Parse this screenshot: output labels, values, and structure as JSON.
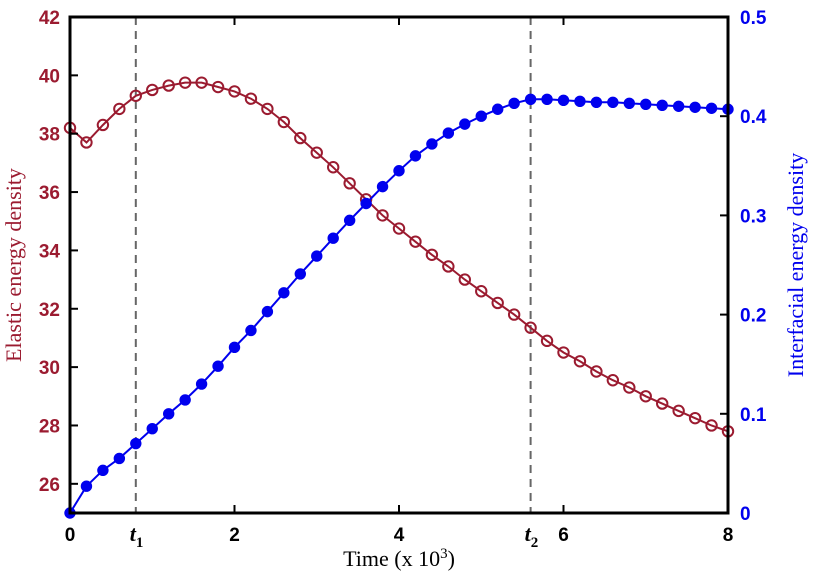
{
  "colors": {
    "elastic": "#9b1b30",
    "interfacial": "#0000ee",
    "axes": "#000000",
    "guide": "#666666"
  },
  "chart_data": {
    "type": "line",
    "xlabel_prefix": "Time (x 10",
    "xlabel_exp": "3",
    "xlabel_suffix": ")",
    "ylabel_left": "Elastic energy density",
    "ylabel_right": "Interfacial energy density",
    "xlim": [
      0,
      8
    ],
    "ylim_left": [
      25,
      42
    ],
    "ylim_right": [
      0,
      0.5
    ],
    "x_ticks": [
      0,
      2,
      4,
      6,
      8
    ],
    "x_tick_labels": [
      "0",
      "2",
      "4",
      "6",
      "8"
    ],
    "y_left_ticks": [
      26,
      28,
      30,
      32,
      34,
      36,
      38,
      40,
      42
    ],
    "y_left_tick_labels": [
      "26",
      "28",
      "30",
      "32",
      "34",
      "36",
      "38",
      "40",
      "42"
    ],
    "y_right_ticks": [
      0,
      0.1,
      0.2,
      0.3,
      0.4,
      0.5
    ],
    "y_right_tick_labels": [
      "0",
      "0.1",
      "0.2",
      "0.3",
      "0.4",
      "0.5"
    ],
    "vertical_markers": [
      {
        "x": 0.8,
        "label": "t",
        "sub": "1"
      },
      {
        "x": 5.6,
        "label": "t",
        "sub": "2"
      }
    ],
    "grid": false,
    "series": [
      {
        "axis": "left",
        "marker": "open-circle",
        "x": [
          0,
          0.2,
          0.4,
          0.6,
          0.8,
          1.0,
          1.2,
          1.4,
          1.6,
          1.8,
          2.0,
          2.2,
          2.4,
          2.6,
          2.8,
          3.0,
          3.2,
          3.4,
          3.6,
          3.8,
          4.0,
          4.2,
          4.4,
          4.6,
          4.8,
          5.0,
          5.2,
          5.4,
          5.6,
          5.8,
          6.0,
          6.2,
          6.4,
          6.6,
          6.8,
          7.0,
          7.2,
          7.4,
          7.6,
          7.8,
          8.0
        ],
        "y": [
          38.2,
          37.7,
          38.3,
          38.85,
          39.3,
          39.5,
          39.65,
          39.75,
          39.75,
          39.6,
          39.45,
          39.2,
          38.85,
          38.4,
          37.85,
          37.35,
          36.85,
          36.3,
          35.75,
          35.2,
          34.75,
          34.3,
          33.85,
          33.45,
          33.0,
          32.6,
          32.2,
          31.8,
          31.35,
          30.9,
          30.5,
          30.2,
          29.85,
          29.55,
          29.3,
          29.0,
          28.75,
          28.5,
          28.25,
          28.0,
          27.8
        ]
      },
      {
        "axis": "right",
        "marker": "filled-circle",
        "x": [
          0,
          0.2,
          0.4,
          0.6,
          0.8,
          1.0,
          1.2,
          1.4,
          1.6,
          1.8,
          2.0,
          2.2,
          2.4,
          2.6,
          2.8,
          3.0,
          3.2,
          3.4,
          3.6,
          3.8,
          4.0,
          4.2,
          4.4,
          4.6,
          4.8,
          5.0,
          5.2,
          5.4,
          5.6,
          5.8,
          6.0,
          6.2,
          6.4,
          6.6,
          6.8,
          7.0,
          7.2,
          7.4,
          7.6,
          7.8,
          8.0
        ],
        "y": [
          0.0,
          0.027,
          0.043,
          0.055,
          0.07,
          0.085,
          0.1,
          0.114,
          0.13,
          0.148,
          0.167,
          0.184,
          0.203,
          0.222,
          0.241,
          0.259,
          0.277,
          0.295,
          0.312,
          0.329,
          0.345,
          0.36,
          0.372,
          0.383,
          0.392,
          0.4,
          0.407,
          0.413,
          0.417,
          0.417,
          0.416,
          0.415,
          0.414,
          0.414,
          0.413,
          0.412,
          0.411,
          0.41,
          0.409,
          0.408,
          0.407
        ]
      }
    ]
  }
}
